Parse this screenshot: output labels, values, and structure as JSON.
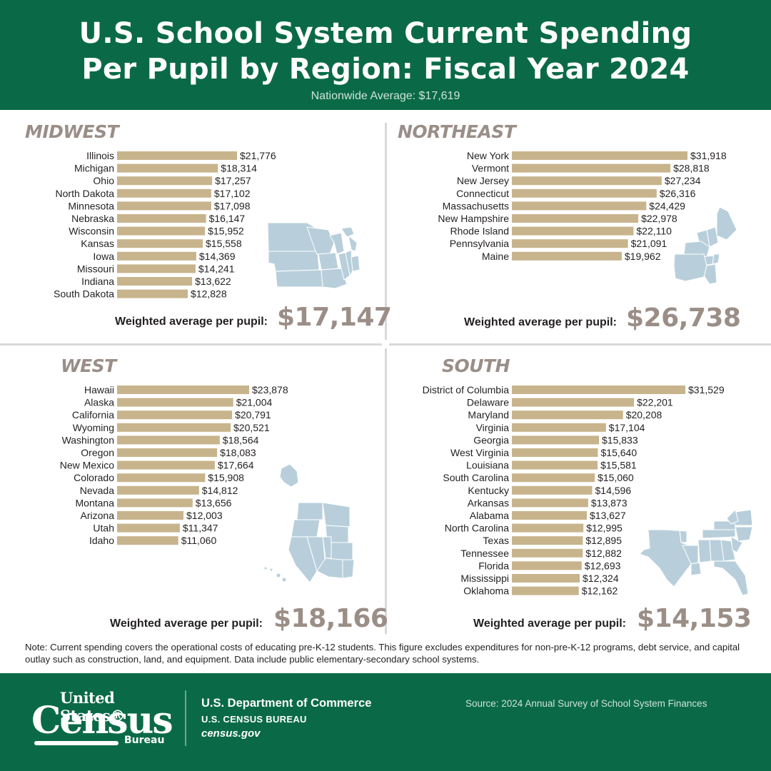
{
  "header": {
    "title_line1": "U.S. School System Current Spending",
    "title_line2": "Per Pupil by Region: Fiscal Year 2024",
    "subtitle": "Nationwide Average: $17,619"
  },
  "colors": {
    "header_bg": "#0a6a47",
    "bar": "#c8b48c",
    "region_title": "#9a8e87",
    "map": "#b8cfdb",
    "divider": "#d9d9d9"
  },
  "chart_data": [
    {
      "type": "bar",
      "orientation": "horizontal",
      "title": "MIDWEST",
      "categories": [
        "Illinois",
        "Michigan",
        "Ohio",
        "North Dakota",
        "Minnesota",
        "Nebraska",
        "Wisconsin",
        "Kansas",
        "Iowa",
        "Missouri",
        "Indiana",
        "South Dakota"
      ],
      "values": [
        21776,
        18314,
        17257,
        17102,
        17098,
        16147,
        15952,
        15558,
        14369,
        14241,
        13622,
        12828
      ],
      "labels": [
        "$21,776",
        "$18,314",
        "$17,257",
        "$17,102",
        "$17,098",
        "$16,147",
        "$15,952",
        "$15,558",
        "$14,369",
        "$14,241",
        "$13,622",
        "$12,828"
      ],
      "average_label": "Weighted average per pupil:",
      "average_value": "$17,147",
      "map": "midwest-map-icon"
    },
    {
      "type": "bar",
      "orientation": "horizontal",
      "title": "NORTHEAST",
      "categories": [
        "New York",
        "Vermont",
        "New Jersey",
        "Connecticut",
        "Massachusetts",
        "New Hampshire",
        "Rhode Island",
        "Pennsylvania",
        "Maine"
      ],
      "values": [
        31918,
        28818,
        27234,
        26316,
        24429,
        22978,
        22110,
        21091,
        19962
      ],
      "labels": [
        "$31,918",
        "$28,818",
        "$27,234",
        "$26,316",
        "$24,429",
        "$22,978",
        "$22,110",
        "$21,091",
        "$19,962"
      ],
      "average_label": "Weighted average per pupil:",
      "average_value": "$26,738",
      "map": "northeast-map-icon"
    },
    {
      "type": "bar",
      "orientation": "horizontal",
      "title": "WEST",
      "categories": [
        "Hawaii",
        "Alaska",
        "California",
        "Wyoming",
        "Washington",
        "Oregon",
        "New Mexico",
        "Colorado",
        "Nevada",
        "Montana",
        "Arizona",
        "Utah",
        "Idaho"
      ],
      "values": [
        23878,
        21004,
        20791,
        20521,
        18564,
        18083,
        17664,
        15908,
        14812,
        13656,
        12003,
        11347,
        11060
      ],
      "labels": [
        "$23,878",
        "$21,004",
        "$20,791",
        "$20,521",
        "$18,564",
        "$18,083",
        "$17,664",
        "$15,908",
        "$14,812",
        "$13,656",
        "$12,003",
        "$11,347",
        "$11,060"
      ],
      "average_label": "Weighted average per pupil:",
      "average_value": "$18,166",
      "map": "west-map-icon"
    },
    {
      "type": "bar",
      "orientation": "horizontal",
      "title": "SOUTH",
      "categories": [
        "District of Columbia",
        "Delaware",
        "Maryland",
        "Virginia",
        "Georgia",
        "West Virginia",
        "Louisiana",
        "South Carolina",
        "Kentucky",
        "Arkansas",
        "Alabama",
        "North Carolina",
        "Texas",
        "Tennessee",
        "Florida",
        "Mississippi",
        "Oklahoma"
      ],
      "values": [
        31529,
        22201,
        20208,
        17104,
        15833,
        15640,
        15581,
        15060,
        14596,
        13873,
        13627,
        12995,
        12895,
        12882,
        12693,
        12324,
        12162
      ],
      "labels": [
        "$31,529",
        "$22,201",
        "$20,208",
        "$17,104",
        "$15,833",
        "$15,640",
        "$15,581",
        "$15,060",
        "$14,596",
        "$13,873",
        "$13,627",
        "$12,995",
        "$12,895",
        "$12,882",
        "$12,693",
        "$12,324",
        "$12,162"
      ],
      "average_label": "Weighted average per pupil:",
      "average_value": "$14,153",
      "map": "south-map-icon"
    }
  ],
  "note": "Note: Current spending covers the operational costs of educating pre-K-12 students. This figure excludes expenditures for non-pre-K-12 programs, debt service, and capital outlay such as construction, land, and equipment. Data include public elementary-secondary school systems.",
  "footer": {
    "logo_line1": "United States®",
    "logo_line2": "Census",
    "logo_line3": "Bureau",
    "department": "U.S. Department of Commerce",
    "bureau": "U.S. CENSUS BUREAU",
    "website": "census.gov",
    "source": "Source: 2024 Annual Survey of School System Finances"
  }
}
